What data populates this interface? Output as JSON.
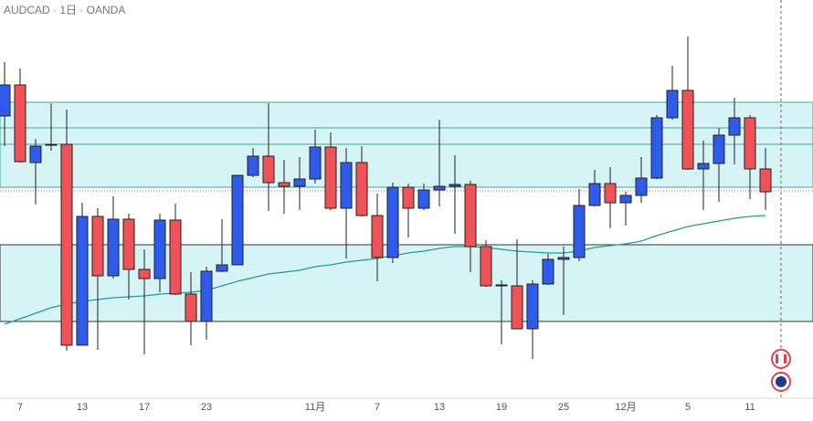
{
  "chart_data": {
    "type": "candlestick",
    "title": "AUDCAD · 1日 · OANDA",
    "categories": [
      null,
      "7",
      null,
      null,
      null,
      "13",
      null,
      null,
      null,
      "17",
      null,
      null,
      null,
      "23",
      null,
      null,
      null,
      null,
      null,
      null,
      "11月",
      null,
      null,
      null,
      "7",
      null,
      null,
      null,
      "13",
      null,
      null,
      null,
      "19",
      null,
      null,
      null,
      "25",
      null,
      null,
      null,
      "12月",
      null,
      null,
      null,
      "5",
      null,
      null,
      null,
      "11",
      null
    ],
    "open": [
      0.9173,
      0.9207,
      0.9122,
      0.9142,
      0.9142,
      0.8922,
      0.9063,
      0.8998,
      0.906,
      0.9005,
      0.8995,
      0.9059,
      0.8978,
      0.8948,
      0.9003,
      0.901,
      0.9108,
      0.9129,
      0.91,
      0.9096,
      0.9104,
      0.9139,
      0.9072,
      0.9122,
      0.9064,
      0.9018,
      0.9095,
      0.9072,
      0.9092,
      0.9096,
      0.9098,
      0.903,
      0.8988,
      0.8987,
      0.894,
      0.8989,
      0.9016,
      0.9018,
      0.9075,
      0.9099,
      0.9078,
      0.9086,
      0.9105,
      0.9171,
      0.9201,
      0.9115,
      0.9121,
      0.9152,
      0.9171,
      0.9115
    ],
    "high": [
      0.9232,
      0.9225,
      0.9148,
      0.9187,
      0.918,
      0.9078,
      0.9072,
      0.9085,
      0.9066,
      0.9027,
      0.9066,
      0.9077,
      0.9002,
      0.9008,
      0.906,
      0.9108,
      0.9138,
      0.9187,
      0.9125,
      0.9128,
      0.9158,
      0.9155,
      0.9138,
      0.914,
      0.9088,
      0.91,
      0.9099,
      0.9099,
      0.9169,
      0.913,
      0.9102,
      0.9037,
      0.8993,
      0.9038,
      0.8993,
      0.9022,
      0.903,
      0.9093,
      0.9114,
      0.9117,
      0.909,
      0.9128,
      0.9174,
      0.9228,
      0.926,
      0.9146,
      0.916,
      0.9193,
      0.9174,
      0.9138
    ],
    "low": [
      0.914,
      0.9122,
      0.9076,
      0.9135,
      0.8916,
      0.8922,
      0.8917,
      0.8995,
      0.8972,
      0.8912,
      0.898,
      0.8977,
      0.8922,
      0.8928,
      0.9002,
      0.901,
      0.9106,
      0.9069,
      0.9066,
      0.907,
      0.9099,
      0.907,
      0.9017,
      0.9063,
      0.8992,
      0.9012,
      0.904,
      0.907,
      0.9074,
      0.9044,
      0.9002,
      0.8986,
      0.8923,
      0.894,
      0.8907,
      0.8988,
      0.8955,
      0.9014,
      0.9074,
      0.905,
      0.9053,
      0.9078,
      0.9104,
      0.9169,
      0.9114,
      0.907,
      0.9079,
      0.912,
      0.9082,
      0.907
    ],
    "close": [
      0.9207,
      0.9123,
      0.914,
      0.9141,
      0.8922,
      0.9063,
      0.8998,
      0.906,
      0.9005,
      0.8995,
      0.9059,
      0.8978,
      0.8948,
      0.9003,
      0.901,
      0.9108,
      0.9129,
      0.91,
      0.9096,
      0.9104,
      0.9139,
      0.9072,
      0.9122,
      0.9064,
      0.9018,
      0.9095,
      0.9072,
      0.9092,
      0.9096,
      0.9098,
      0.903,
      0.8987,
      0.8987,
      0.894,
      0.8989,
      0.9016,
      0.9018,
      0.9075,
      0.9099,
      0.9078,
      0.9086,
      0.9105,
      0.9171,
      0.9201,
      0.9115,
      0.9121,
      0.9152,
      0.9171,
      0.9115,
      0.909
    ],
    "up_color": "#2e5bea",
    "down_color": "#ef5358",
    "ma": {
      "color": "#1f9e8f",
      "values": [
        0.8945,
        0.8951,
        0.8957,
        0.8963,
        0.8967,
        0.897,
        0.8972,
        0.8974,
        0.8975,
        0.8976,
        0.8978,
        0.8979,
        0.898,
        0.8982,
        0.8987,
        0.8992,
        0.8996,
        0.9,
        0.9002,
        0.9004,
        0.9008,
        0.901,
        0.9013,
        0.9015,
        0.9017,
        0.902,
        0.9023,
        0.9025,
        0.9028,
        0.903,
        0.903,
        0.9029,
        0.9027,
        0.9025,
        0.9024,
        0.9023,
        0.9023,
        0.9025,
        0.9029,
        0.9031,
        0.9033,
        0.9036,
        0.9042,
        0.9047,
        0.9052,
        0.9055,
        0.9058,
        0.9061,
        0.9063,
        0.9064
      ]
    },
    "zones": [
      [
        0.9188,
        0.9095
      ],
      [
        0.9032,
        0.8948
      ]
    ],
    "levels": [
      0.916,
      0.9142
    ],
    "last_price": 0.9091,
    "ylim": [
      0.8839,
      0.93
    ]
  }
}
